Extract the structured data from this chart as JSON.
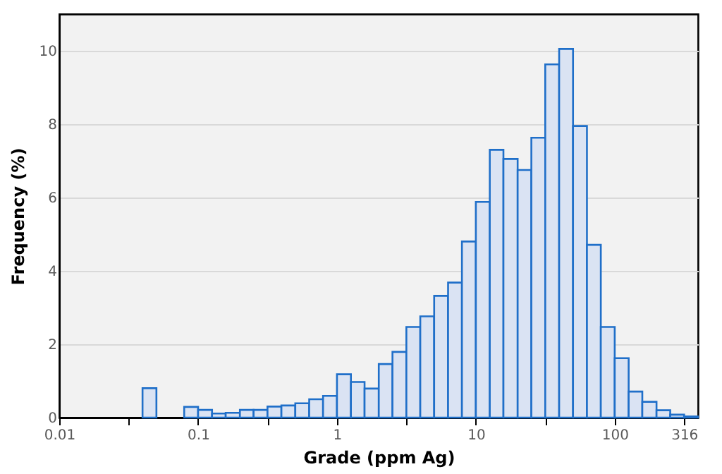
{
  "chart_data": {
    "type": "histogram",
    "xlabel": "Grade (ppm Ag)",
    "ylabel": "Frequency (%)",
    "bins": [
      0.0398,
      0.0501,
      0.0631,
      0.0794,
      0.1,
      0.126,
      0.158,
      0.2,
      0.251,
      0.316,
      0.398,
      0.501,
      0.631,
      0.794,
      1,
      1.26,
      1.58,
      2,
      2.51,
      3.16,
      3.98,
      5.01,
      6.31,
      7.94,
      10,
      12.6,
      15.8,
      20,
      25.1,
      31.6,
      39.8,
      50.1,
      63.1,
      79.4,
      100,
      126,
      158,
      200,
      251,
      316,
      398
    ],
    "values": [
      0.8,
      0,
      0,
      0.29,
      0.21,
      0.11,
      0.13,
      0.21,
      0.21,
      0.3,
      0.33,
      0.39,
      0.5,
      0.59,
      1.18,
      0.97,
      0.79,
      1.46,
      1.79,
      2.47,
      2.76,
      3.32,
      3.68,
      4.8,
      5.88,
      7.3,
      7.05,
      6.75,
      7.63,
      9.63,
      10.05,
      7.95,
      4.71,
      2.47,
      1.62,
      0.71,
      0.43,
      0.2,
      0.08,
      0.03
    ],
    "color": "#dae3f3",
    "log": "x",
    "xlim": [
      0.01,
      398
    ],
    "xticks": [
      0.01,
      {
        "value": 0.0316,
        "label": null
      },
      0.1,
      {
        "value": 0.316,
        "label": null
      },
      1,
      {
        "value": 3.16,
        "label": null
      },
      10,
      {
        "value": 31.6,
        "label": null
      },
      100,
      316
    ],
    "ylim": [
      0,
      11
    ],
    "yticks": [
      0,
      2,
      4,
      6,
      8,
      10
    ],
    "grid": "y"
  }
}
